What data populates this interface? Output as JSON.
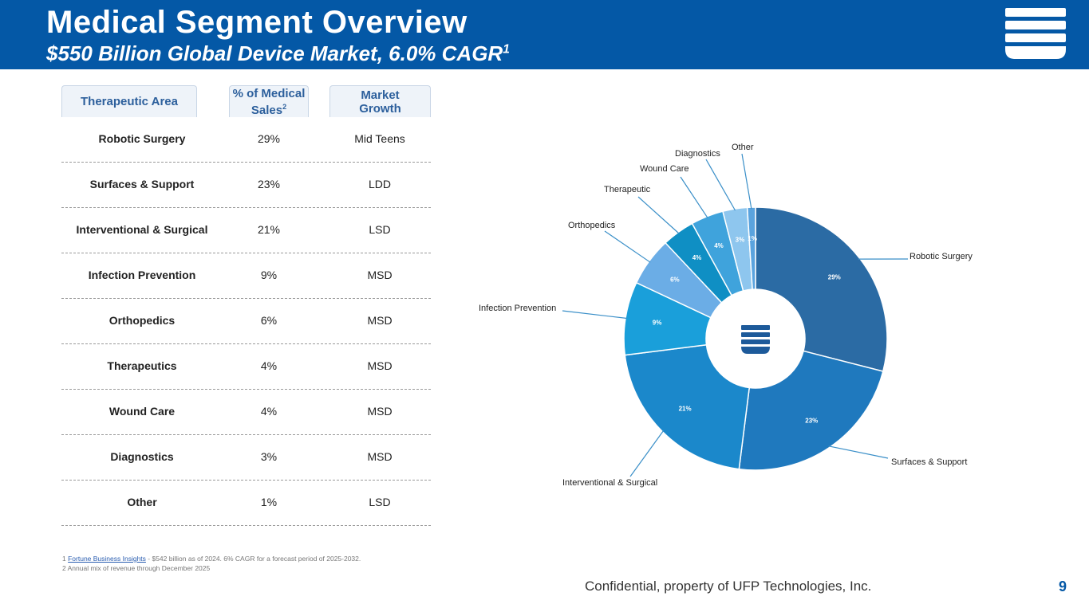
{
  "header": {
    "title": "Medical Segment Overview",
    "subtitle": "$550 Billion Global Device Market, 6.0% CAGR",
    "subtitle_note": "1"
  },
  "table": {
    "headers": [
      {
        "text": "Therapeutic Area"
      },
      {
        "text": "% of Medical Sales",
        "note": "2"
      },
      {
        "text": "Market Growth"
      }
    ],
    "rows": [
      [
        "Robotic Surgery",
        "29%",
        "Mid Teens"
      ],
      [
        "Surfaces & Support",
        "23%",
        "LDD"
      ],
      [
        "Interventional & Surgical",
        "21%",
        "LSD"
      ],
      [
        "Infection Prevention",
        "9%",
        "MSD"
      ],
      [
        "Orthopedics",
        "6%",
        "MSD"
      ],
      [
        "Therapeutics",
        "4%",
        "MSD"
      ],
      [
        "Wound Care",
        "4%",
        "MSD"
      ],
      [
        "Diagnostics",
        "3%",
        "MSD"
      ],
      [
        "Other",
        "1%",
        "LSD"
      ]
    ]
  },
  "chart_data": {
    "type": "donut",
    "categories": [
      "Robotic Surgery",
      "Surfaces & Support",
      "Interventional & Surgical",
      "Infection Prevention",
      "Orthopedics",
      "Therapeutic",
      "Wound Care",
      "Diagnostics",
      "Other"
    ],
    "values": [
      29,
      23,
      21,
      9,
      6,
      4,
      4,
      3,
      1
    ],
    "value_labels": [
      "29%",
      "23%",
      "21%",
      "9%",
      "6%",
      "4%",
      "4%",
      "3%",
      "1%"
    ],
    "colors": [
      "#2b6ba4",
      "#1f79be",
      "#1b88cb",
      "#1a9fda",
      "#6badE6",
      "#0f8fc4",
      "#3fa3dc",
      "#8ec6ee",
      "#5aa3de"
    ]
  },
  "footnotes": [
    {
      "marker": "1",
      "link": "Fortune Business Insights",
      "text": " - $542 billion as of 2024. 6% CAGR for a forecast period of 2025-2032."
    },
    {
      "marker": "2",
      "text": " Annual mix of revenue through December 2025"
    }
  ],
  "footer": {
    "text": "Confidential, property of UFP Technologies, Inc.",
    "page": "9"
  }
}
